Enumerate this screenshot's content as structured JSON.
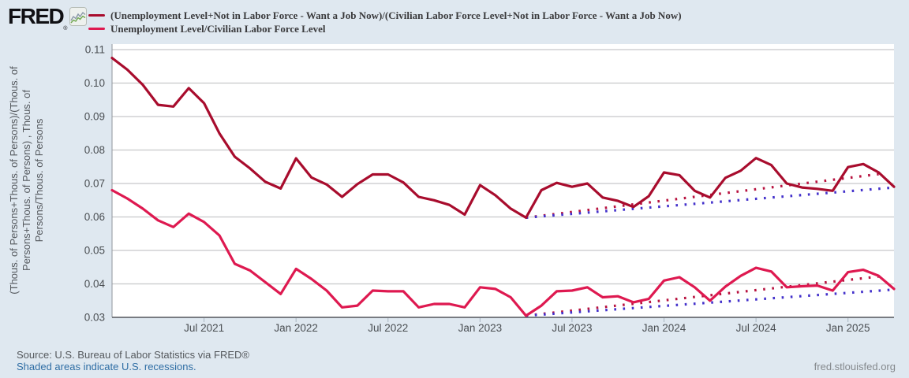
{
  "header": {
    "logo_text": "FRED",
    "logo_registered": "®",
    "legend": [
      {
        "label": "(Unemployment Level+Not in Labor Force - Want a Job Now)/(Civilian Labor Force Level+Not in Labor Force - Want a Job Now)",
        "color": "#a80c2d"
      },
      {
        "label": "Unemployment Level/Civilian Labor Force Level",
        "color": "#de1950"
      }
    ]
  },
  "footer": {
    "source_text": "Source: U.S. Bureau of Labor Statistics via FRED®",
    "recession_note": "Shaded areas indicate U.S. recessions.",
    "site_url": "fred.stlouisfed.org"
  },
  "colors": {
    "background": "#dfe8f0",
    "plot_background": "#ffffff",
    "gridline": "#c6c8ca",
    "left_axis": "#8f959b",
    "bottom_axis": "#55595e",
    "series_upper": "#a80c2d",
    "series_lower": "#de1950",
    "trend_red": "#b8123f",
    "trend_blue": "#4331cb",
    "link_blue": "#2e6da4"
  },
  "chart_data": {
    "type": "line",
    "title": "",
    "ylabel": "(Thous. of Persons+Thous. of Persons)/(Thous. of Persons+Thous. of Persons) , Thous. of Persons/Thous. of Persons",
    "ylabel_lines": [
      "(Thous. of Persons+Thous. of Persons)/(Thous. of",
      "Persons+Thous. of Persons) , Thous. of",
      "Persons/Thous. of Persons"
    ],
    "xlabel": "",
    "grid": true,
    "legend_position": "top",
    "ylim": [
      0.03,
      0.11
    ],
    "y_ticks": [
      0.03,
      0.04,
      0.05,
      0.06,
      0.07,
      0.08,
      0.09,
      0.1,
      0.11
    ],
    "x": [
      "2021-01",
      "2021-02",
      "2021-03",
      "2021-04",
      "2021-05",
      "2021-06",
      "2021-07",
      "2021-08",
      "2021-09",
      "2021-10",
      "2021-11",
      "2021-12",
      "2022-01",
      "2022-02",
      "2022-03",
      "2022-04",
      "2022-05",
      "2022-06",
      "2022-07",
      "2022-08",
      "2022-09",
      "2022-10",
      "2022-11",
      "2022-12",
      "2023-01",
      "2023-02",
      "2023-03",
      "2023-04",
      "2023-05",
      "2023-06",
      "2023-07",
      "2023-08",
      "2023-09",
      "2023-10",
      "2023-11",
      "2023-12",
      "2024-01",
      "2024-02",
      "2024-03",
      "2024-04",
      "2024-05",
      "2024-06",
      "2024-07",
      "2024-08",
      "2024-09",
      "2024-10",
      "2024-11",
      "2024-12",
      "2025-01",
      "2025-02",
      "2025-03",
      "2025-04"
    ],
    "x_tick_labels": [
      {
        "index": 6,
        "label": "Jul 2021"
      },
      {
        "index": 12,
        "label": "Jan 2022"
      },
      {
        "index": 18,
        "label": "Jul 2022"
      },
      {
        "index": 24,
        "label": "Jan 2023"
      },
      {
        "index": 30,
        "label": "Jul 2023"
      },
      {
        "index": 36,
        "label": "Jan 2024"
      },
      {
        "index": 42,
        "label": "Jul 2024"
      },
      {
        "index": 48,
        "label": "Jan 2025"
      }
    ],
    "series": [
      {
        "name": "(Unemployment Level+Not in Labor Force - Want a Job Now)/(Civilian Labor Force Level+Not in Labor Force - Want a Job Now)",
        "color": "#a80c2d",
        "style": "solid",
        "values": [
          0.1075,
          0.104,
          0.0995,
          0.0935,
          0.093,
          0.0985,
          0.094,
          0.085,
          0.078,
          0.0745,
          0.0705,
          0.0685,
          0.0775,
          0.0718,
          0.0697,
          0.066,
          0.0698,
          0.0727,
          0.0727,
          0.0703,
          0.066,
          0.065,
          0.0636,
          0.0607,
          0.0695,
          0.0665,
          0.0625,
          0.0598,
          0.068,
          0.0702,
          0.069,
          0.07,
          0.0658,
          0.0648,
          0.063,
          0.0662,
          0.0733,
          0.0725,
          0.0678,
          0.0658,
          0.0717,
          0.0738,
          0.0776,
          0.0755,
          0.07,
          0.0688,
          0.0684,
          0.0678,
          0.0749,
          0.0758,
          0.0733,
          0.069
        ]
      },
      {
        "name": "Unemployment Level/Civilian Labor Force Level",
        "color": "#de1950",
        "style": "solid",
        "values": [
          0.068,
          0.0655,
          0.0625,
          0.059,
          0.057,
          0.061,
          0.0585,
          0.0545,
          0.046,
          0.044,
          0.0405,
          0.037,
          0.0445,
          0.0415,
          0.038,
          0.033,
          0.0335,
          0.038,
          0.0378,
          0.0378,
          0.033,
          0.034,
          0.034,
          0.033,
          0.039,
          0.0385,
          0.036,
          0.0305,
          0.0335,
          0.0378,
          0.038,
          0.039,
          0.036,
          0.0363,
          0.0345,
          0.0355,
          0.041,
          0.042,
          0.039,
          0.035,
          0.0392,
          0.0424,
          0.0448,
          0.0437,
          0.039,
          0.0393,
          0.0395,
          0.038,
          0.0435,
          0.0442,
          0.0424,
          0.0385
        ]
      }
    ],
    "trend_lines": [
      {
        "name": "upper-series-trend-red",
        "color": "#b8123f",
        "style": "dotted",
        "start_index": 27,
        "end_index": 50,
        "start_value": 0.0598,
        "end_value": 0.0728
      },
      {
        "name": "upper-series-trend-blue",
        "color": "#4331cb",
        "style": "dotted",
        "start_index": 27,
        "end_index": 51,
        "start_value": 0.0598,
        "end_value": 0.0688
      },
      {
        "name": "lower-series-trend-red",
        "color": "#b8123f",
        "style": "dotted",
        "start_index": 27,
        "end_index": 50,
        "start_value": 0.0305,
        "end_value": 0.0422
      },
      {
        "name": "lower-series-trend-blue",
        "color": "#4331cb",
        "style": "dotted",
        "start_index": 27,
        "end_index": 51,
        "start_value": 0.0305,
        "end_value": 0.0383
      }
    ]
  }
}
